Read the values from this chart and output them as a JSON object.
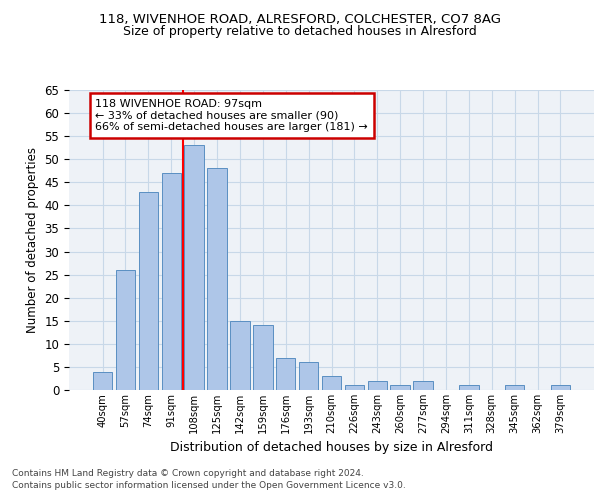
{
  "title_line1": "118, WIVENHOE ROAD, ALRESFORD, COLCHESTER, CO7 8AG",
  "title_line2": "Size of property relative to detached houses in Alresford",
  "xlabel": "Distribution of detached houses by size in Alresford",
  "ylabel": "Number of detached properties",
  "bar_values": [
    4,
    26,
    43,
    47,
    53,
    48,
    15,
    14,
    7,
    6,
    3,
    1,
    2,
    1,
    2,
    0,
    1,
    0,
    1,
    0,
    1
  ],
  "bar_labels": [
    "40sqm",
    "57sqm",
    "74sqm",
    "91sqm",
    "108sqm",
    "125sqm",
    "142sqm",
    "159sqm",
    "176sqm",
    "193sqm",
    "210sqm",
    "226sqm",
    "243sqm",
    "260sqm",
    "277sqm",
    "294sqm",
    "311sqm",
    "328sqm",
    "345sqm",
    "362sqm",
    "379sqm"
  ],
  "bar_color": "#aec6e8",
  "bar_edge_color": "#5a8fc2",
  "ylim": [
    0,
    65
  ],
  "yticks": [
    0,
    5,
    10,
    15,
    20,
    25,
    30,
    35,
    40,
    45,
    50,
    55,
    60,
    65
  ],
  "annotation_line1": "118 WIVENHOE ROAD: 97sqm",
  "annotation_line2": "← 33% of detached houses are smaller (90)",
  "annotation_line3": "66% of semi-detached houses are larger (181) →",
  "vline_x_index": 3.5,
  "annotation_box_color": "#ffffff",
  "annotation_box_edge_color": "#cc0000",
  "footer_line1": "Contains HM Land Registry data © Crown copyright and database right 2024.",
  "footer_line2": "Contains public sector information licensed under the Open Government Licence v3.0.",
  "grid_color": "#c8d8e8",
  "background_color": "#eef2f7"
}
